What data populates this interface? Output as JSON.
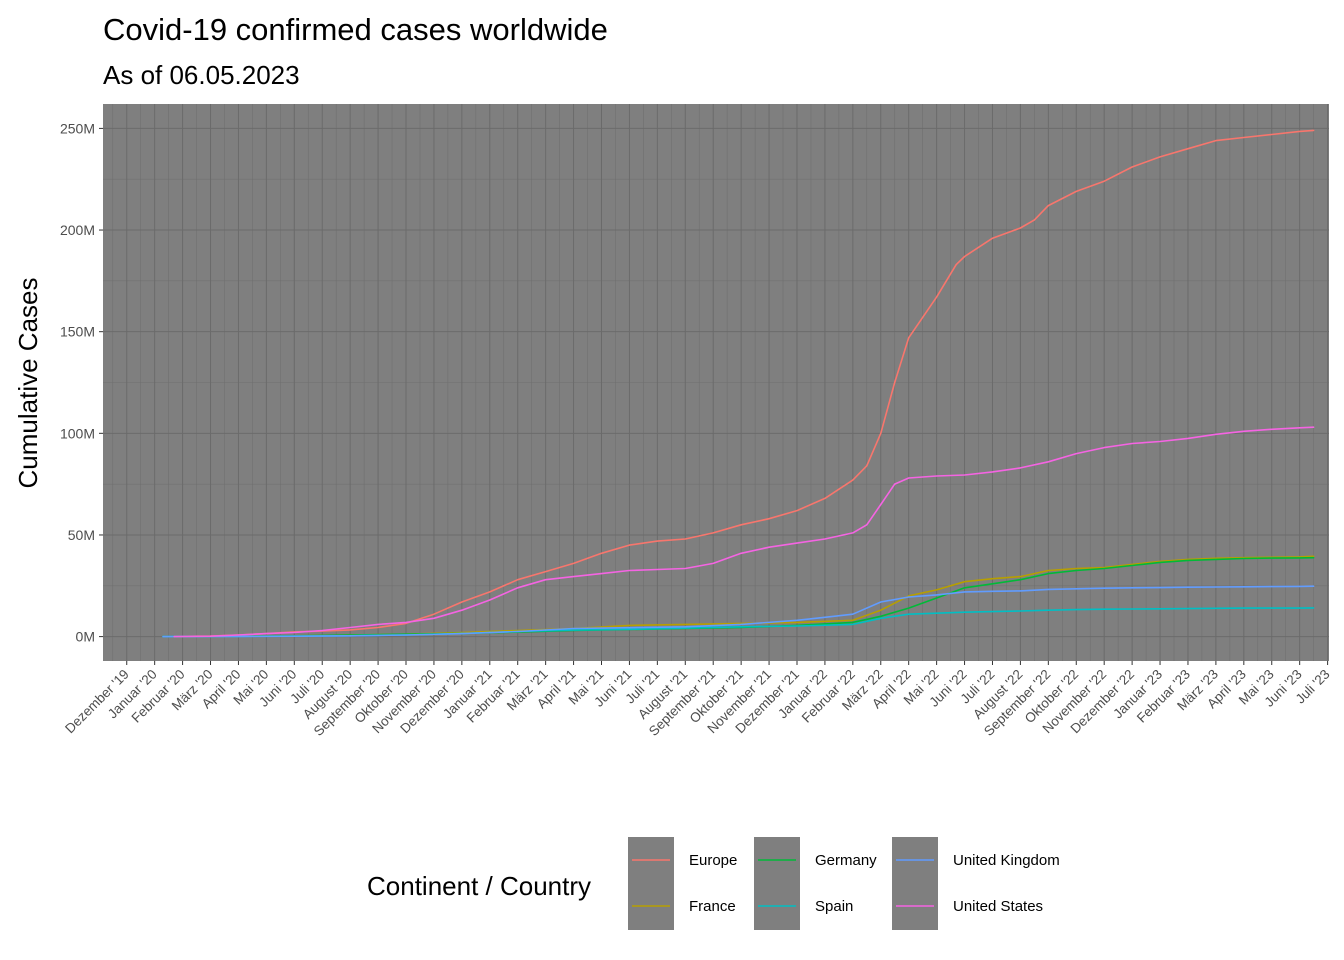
{
  "chart_data": {
    "type": "line",
    "title": "Covid-19 confirmed cases worldwide",
    "subtitle": "As of 06.05.2023",
    "ylabel": "Cumulative Cases",
    "xlabel": "",
    "ylim": [
      -12000000,
      262000000
    ],
    "yticks": [
      {
        "value": 0,
        "label": "0M"
      },
      {
        "value": 50000000,
        "label": "50M"
      },
      {
        "value": 100000000,
        "label": "100M"
      },
      {
        "value": 150000000,
        "label": "150M"
      },
      {
        "value": 200000000,
        "label": "200M"
      },
      {
        "value": 250000000,
        "label": "250M"
      }
    ],
    "x_ticks": [
      "Dezember '19",
      "Januar '20",
      "Februar '20",
      "März '20",
      "April '20",
      "Mai '20",
      "Juni '20",
      "Juli '20",
      "August '20",
      "September '20",
      "Oktober '20",
      "November '20",
      "Dezember '20",
      "Januar '21",
      "Februar '21",
      "März '21",
      "April '21",
      "Mai '21",
      "Juni '21",
      "Juli '21",
      "August '21",
      "September '21",
      "Oktober '21",
      "November '21",
      "Dezember '21",
      "Januar '22",
      "Februar '22",
      "März '22",
      "April '22",
      "Mai '22",
      "Juni '22",
      "Juli '22",
      "August '22",
      "September '22",
      "Oktober '22",
      "November '22",
      "Dezember '22",
      "Januar '23",
      "Februar '23",
      "März '23",
      "April '23",
      "Mai '23",
      "Juni '23",
      "Juli '23"
    ],
    "x_range_months": [
      -0.85,
      43.05
    ],
    "grid": true,
    "legend": {
      "title": "Continent / Country",
      "position": "bottom",
      "columns": [
        [
          "Europe",
          "France"
        ],
        [
          "Germany",
          "Spain"
        ],
        [
          "United Kingdom",
          "United States"
        ]
      ]
    },
    "series": [
      {
        "name": "Europe",
        "color": "#F8766D",
        "points": [
          [
            1.7,
            0.1
          ],
          [
            3,
            0.3
          ],
          [
            4,
            0.8
          ],
          [
            5,
            1.5
          ],
          [
            6,
            2.3
          ],
          [
            7,
            2.7
          ],
          [
            8,
            3.3
          ],
          [
            9,
            4.5
          ],
          [
            10,
            6.5
          ],
          [
            11,
            11
          ],
          [
            12,
            17
          ],
          [
            13,
            22
          ],
          [
            14,
            28
          ],
          [
            15,
            32
          ],
          [
            16,
            36
          ],
          [
            17,
            41
          ],
          [
            18,
            45
          ],
          [
            19,
            47
          ],
          [
            20,
            48
          ],
          [
            21,
            51
          ],
          [
            22,
            55
          ],
          [
            23,
            58
          ],
          [
            24,
            62
          ],
          [
            25,
            68
          ],
          [
            26,
            77
          ],
          [
            26.5,
            84
          ],
          [
            27,
            100
          ],
          [
            27.5,
            125
          ],
          [
            28,
            147
          ],
          [
            29,
            167
          ],
          [
            29.7,
            183
          ],
          [
            30,
            187
          ],
          [
            31,
            196
          ],
          [
            32,
            201
          ],
          [
            32.5,
            205
          ],
          [
            33,
            212
          ],
          [
            34,
            219
          ],
          [
            35,
            224
          ],
          [
            36,
            231
          ],
          [
            37,
            236
          ],
          [
            38,
            240
          ],
          [
            39,
            244
          ],
          [
            40,
            245.5
          ],
          [
            41,
            247
          ],
          [
            42,
            248.5
          ],
          [
            42.5,
            249
          ]
        ]
      },
      {
        "name": "France",
        "color": "#B79F00",
        "points": [
          [
            1.7,
            0
          ],
          [
            4,
            0.2
          ],
          [
            6,
            0.4
          ],
          [
            8,
            0.8
          ],
          [
            10,
            1.2
          ],
          [
            12,
            2
          ],
          [
            14,
            3
          ],
          [
            16,
            4
          ],
          [
            18,
            5.5
          ],
          [
            20,
            6
          ],
          [
            22,
            6.5
          ],
          [
            24,
            7
          ],
          [
            26,
            8
          ],
          [
            27,
            13
          ],
          [
            28,
            20
          ],
          [
            29,
            23
          ],
          [
            30,
            27
          ],
          [
            31,
            28.5
          ],
          [
            32,
            29.5
          ],
          [
            33,
            32.5
          ],
          [
            34,
            33.5
          ],
          [
            35,
            34
          ],
          [
            36,
            35.5
          ],
          [
            37,
            37
          ],
          [
            38,
            38
          ],
          [
            39,
            38.5
          ],
          [
            40,
            38.8
          ],
          [
            41,
            39
          ],
          [
            42,
            39.2
          ],
          [
            42.5,
            39.5
          ]
        ]
      },
      {
        "name": "Germany",
        "color": "#00BA38",
        "points": [
          [
            1.3,
            0
          ],
          [
            4,
            0.2
          ],
          [
            6,
            0.4
          ],
          [
            8,
            0.8
          ],
          [
            10,
            1.2
          ],
          [
            12,
            1.6
          ],
          [
            14,
            2.2
          ],
          [
            16,
            3
          ],
          [
            18,
            3.5
          ],
          [
            20,
            4
          ],
          [
            22,
            4.5
          ],
          [
            24,
            5.5
          ],
          [
            26,
            7
          ],
          [
            27,
            10
          ],
          [
            28,
            14
          ],
          [
            29,
            19
          ],
          [
            30,
            24
          ],
          [
            31,
            26
          ],
          [
            32,
            28
          ],
          [
            33,
            31
          ],
          [
            34,
            32.5
          ],
          [
            35,
            33.5
          ],
          [
            36,
            35
          ],
          [
            37,
            36.5
          ],
          [
            38,
            37.5
          ],
          [
            39,
            38
          ],
          [
            40,
            38.4
          ],
          [
            41,
            38.6
          ],
          [
            42,
            38.7
          ],
          [
            42.5,
            38.8
          ]
        ]
      },
      {
        "name": "Spain",
        "color": "#00BFC4",
        "points": [
          [
            1.3,
            0
          ],
          [
            4,
            0.1
          ],
          [
            6,
            0.2
          ],
          [
            8,
            0.4
          ],
          [
            10,
            0.8
          ],
          [
            12,
            1.5
          ],
          [
            14,
            2.5
          ],
          [
            16,
            3.2
          ],
          [
            18,
            3.6
          ],
          [
            20,
            4.2
          ],
          [
            22,
            4.8
          ],
          [
            24,
            5.2
          ],
          [
            26,
            6
          ],
          [
            27,
            9
          ],
          [
            28,
            11
          ],
          [
            29,
            11.5
          ],
          [
            30,
            12
          ],
          [
            31,
            12.3
          ],
          [
            32,
            12.6
          ],
          [
            33,
            13
          ],
          [
            34,
            13.3
          ],
          [
            35,
            13.5
          ],
          [
            36,
            13.6
          ],
          [
            37,
            13.7
          ],
          [
            38,
            13.8
          ],
          [
            39,
            13.9
          ],
          [
            40,
            14
          ],
          [
            41,
            14
          ],
          [
            42,
            14
          ],
          [
            42.5,
            14.1
          ]
        ]
      },
      {
        "name": "United Kingdom",
        "color": "#619CFF",
        "points": [
          [
            1.3,
            0
          ],
          [
            4,
            0.1
          ],
          [
            6,
            0.2
          ],
          [
            8,
            0.4
          ],
          [
            10,
            0.8
          ],
          [
            12,
            1.5
          ],
          [
            14,
            2.5
          ],
          [
            16,
            4
          ],
          [
            18,
            4.4
          ],
          [
            20,
            4.8
          ],
          [
            22,
            6
          ],
          [
            24,
            8
          ],
          [
            25,
            9.5
          ],
          [
            26,
            11
          ],
          [
            27,
            17
          ],
          [
            28,
            19.5
          ],
          [
            29,
            20.5
          ],
          [
            30,
            22
          ],
          [
            31,
            22.3
          ],
          [
            32,
            22.5
          ],
          [
            33,
            23.2
          ],
          [
            34,
            23.5
          ],
          [
            35,
            23.8
          ],
          [
            36,
            24
          ],
          [
            37,
            24.1
          ],
          [
            38,
            24.3
          ],
          [
            39,
            24.4
          ],
          [
            40,
            24.5
          ],
          [
            41,
            24.6
          ],
          [
            42,
            24.7
          ],
          [
            42.5,
            24.8
          ]
        ]
      },
      {
        "name": "United States",
        "color": "#F564E3",
        "points": [
          [
            1.7,
            0
          ],
          [
            3,
            0.2
          ],
          [
            4,
            0.8
          ],
          [
            5,
            1.5
          ],
          [
            6,
            2
          ],
          [
            7,
            3
          ],
          [
            8,
            4.5
          ],
          [
            9,
            6
          ],
          [
            10,
            7
          ],
          [
            11,
            9
          ],
          [
            12,
            13
          ],
          [
            13,
            18
          ],
          [
            14,
            24
          ],
          [
            15,
            28
          ],
          [
            16,
            29.5
          ],
          [
            17,
            31
          ],
          [
            18,
            32.5
          ],
          [
            19,
            33
          ],
          [
            20,
            33.5
          ],
          [
            21,
            36
          ],
          [
            22,
            41
          ],
          [
            23,
            44
          ],
          [
            24,
            46
          ],
          [
            25,
            48
          ],
          [
            26,
            51
          ],
          [
            26.5,
            55
          ],
          [
            27,
            65
          ],
          [
            27.5,
            75
          ],
          [
            28,
            78
          ],
          [
            29,
            79
          ],
          [
            30,
            79.5
          ],
          [
            31,
            81
          ],
          [
            32,
            83
          ],
          [
            33,
            86
          ],
          [
            34,
            90
          ],
          [
            35,
            93
          ],
          [
            36,
            95
          ],
          [
            37,
            96
          ],
          [
            38,
            97.5
          ],
          [
            39,
            99.5
          ],
          [
            40,
            101
          ],
          [
            41,
            102
          ],
          [
            42,
            102.7
          ],
          [
            42.5,
            103
          ]
        ]
      }
    ]
  }
}
